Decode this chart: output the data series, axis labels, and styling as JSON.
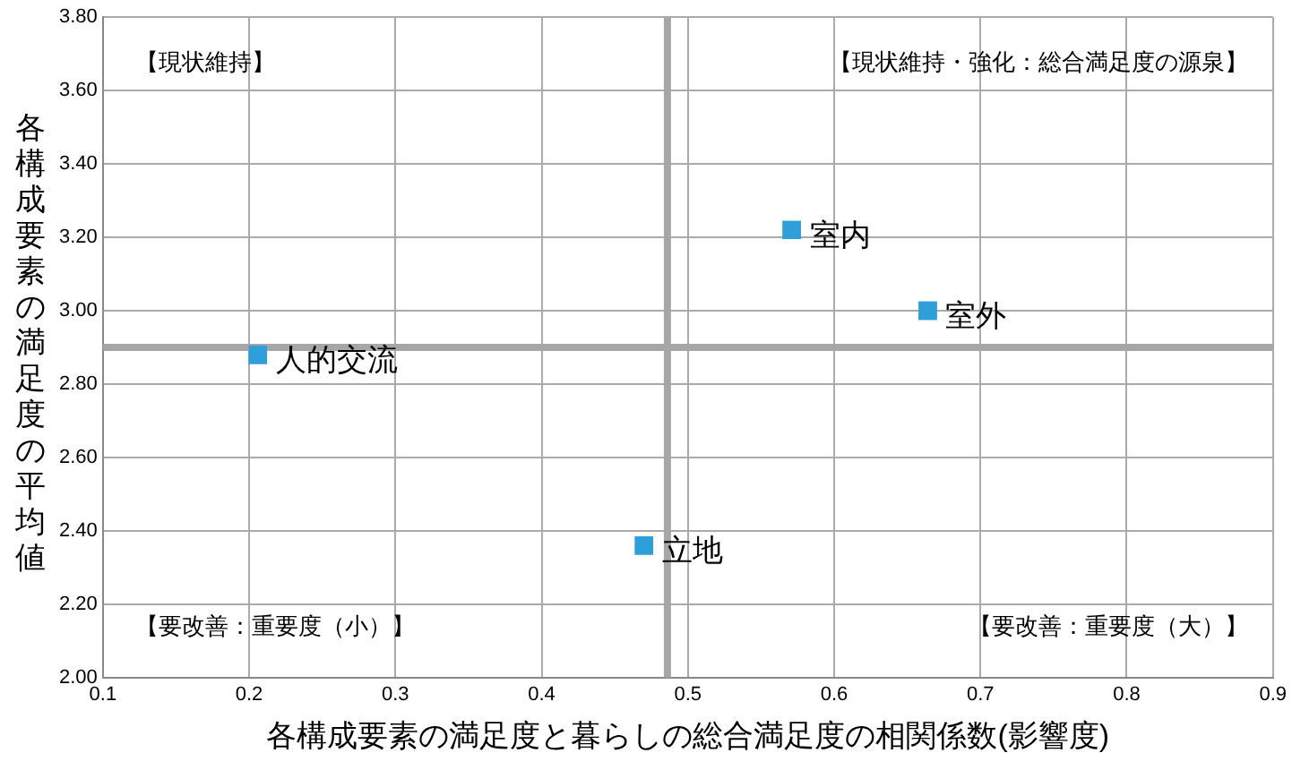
{
  "chart_data": {
    "type": "scatter",
    "xlabel": "各構成要素の満足度と暮らしの総合満足度の相関係数(影響度)",
    "ylabel": "各構成要素の満足度の平均値",
    "x": [
      0.206,
      0.571,
      0.664,
      0.47
    ],
    "series": [
      {
        "color": "#2e9fd8",
        "values": [
          2.88,
          3.22,
          3.0,
          2.36
        ]
      }
    ],
    "marker": "square",
    "grid": true,
    "xlim": [
      0.1,
      0.9
    ],
    "xticks": [
      0.1,
      0.2,
      0.3,
      0.4,
      0.5,
      0.6,
      0.7,
      0.8,
      0.9
    ],
    "ylim": [
      2.0,
      3.8
    ],
    "yticks": [
      {
        "value": 2.0,
        "label": "2.00"
      },
      {
        "value": 2.2,
        "label": "2.20"
      },
      {
        "value": 2.4,
        "label": "2.40"
      },
      {
        "value": 2.6,
        "label": "2.60"
      },
      {
        "value": 2.8,
        "label": "2.80"
      },
      {
        "value": 3.0,
        "label": "3.00"
      },
      {
        "value": 3.2,
        "label": "3.20"
      },
      {
        "value": 3.4,
        "label": "3.40"
      },
      {
        "value": 3.6,
        "label": "3.60"
      },
      {
        "value": 3.8,
        "label": "3.80"
      }
    ],
    "ref_lines": [
      {
        "axis": "x",
        "value": 0.486,
        "color": "#a6a6a6"
      },
      {
        "axis": "y",
        "value": 2.9,
        "color": "#a6a6a6"
      }
    ],
    "annotations": [
      "【現状維持】",
      "【現状維持・強化：総合満足度の源泉】",
      "【要改善：重要度（小）】",
      "【要改善：重要度（大）】",
      {
        "text": "人的交流",
        "x": 0.206,
        "y": 2.88
      },
      {
        "text": "室内",
        "x": 0.571,
        "y": 3.22
      },
      {
        "text": "室外",
        "x": 0.664,
        "y": 3.0
      },
      {
        "text": "立地",
        "x": 0.47,
        "y": 2.36
      }
    ],
    "legend": false
  }
}
